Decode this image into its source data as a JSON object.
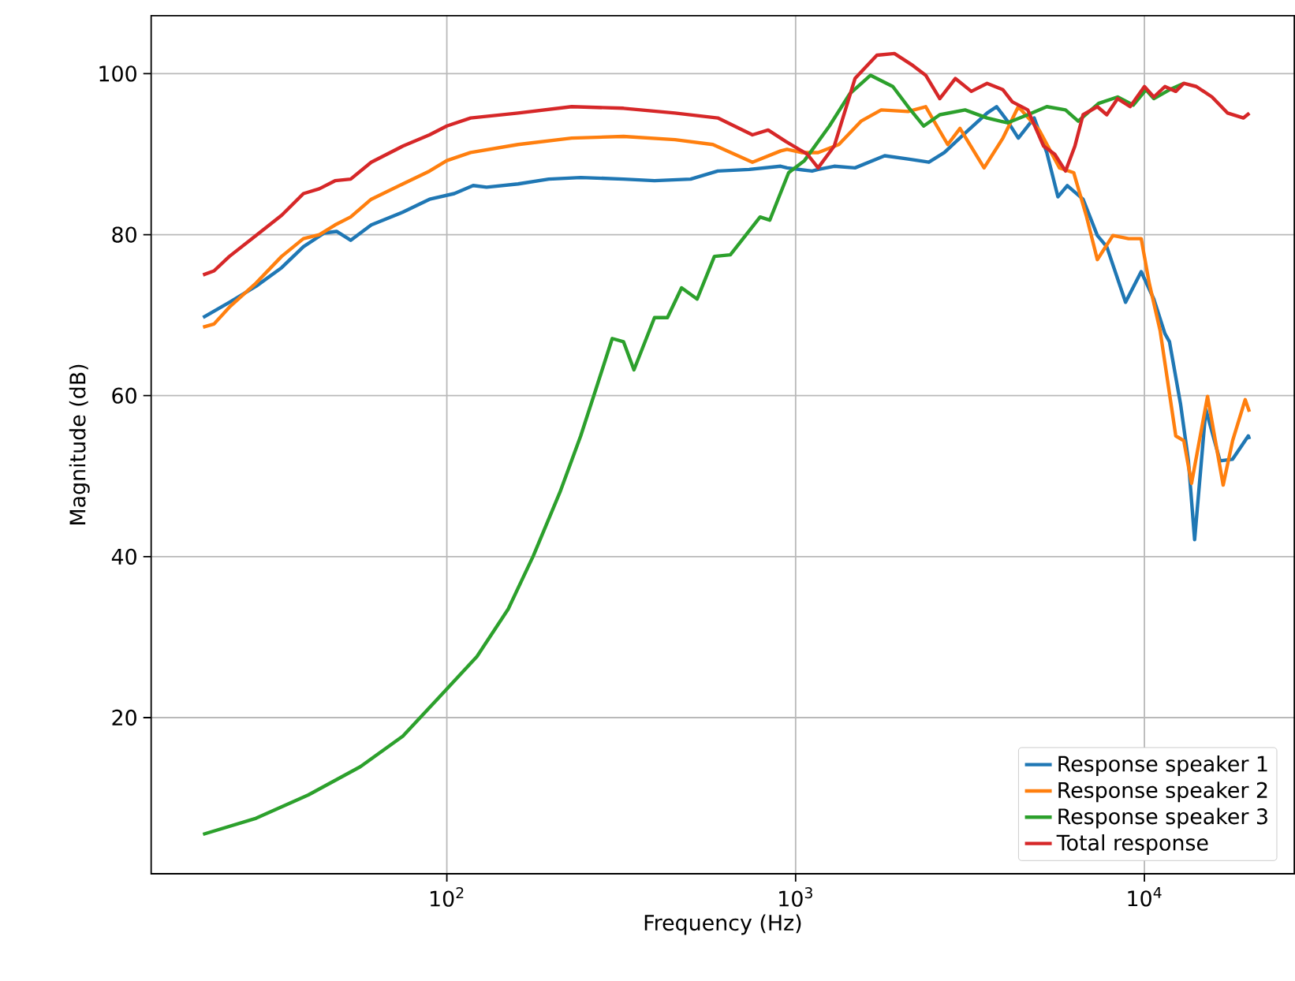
{
  "chart_data": {
    "type": "line",
    "xlabel": "Frequency (Hz)",
    "ylabel": "Magnitude (dB)",
    "log": "x",
    "xlim": [
      14.2,
      26900
    ],
    "ylim": [
      0.6,
      107.2
    ],
    "xticks": [
      {
        "value": 100,
        "label": "10$^{2}$"
      },
      {
        "value": 1000,
        "label": "10$^{3}$"
      },
      {
        "value": 10000,
        "label": "10$^{4}$"
      }
    ],
    "yticks": [
      20,
      40,
      60,
      80,
      100
    ],
    "grid": true,
    "legend": "bottom right",
    "marker": "none",
    "line_style": "solid",
    "series": [
      {
        "name": "Response speaker 1",
        "color": "#1f77b4",
        "x": [
          20,
          21.5,
          23.8,
          28.4,
          33.6,
          38.8,
          44.5,
          48.3,
          53.0,
          60.7,
          74.8,
          89.2,
          105,
          119,
          130,
          160,
          196,
          242,
          321,
          394,
          500,
          598,
          736,
          906,
          945,
          1115,
          1160,
          1290,
          1480,
          1800,
          2100,
          2410,
          2670,
          3060,
          3540,
          3770,
          4050,
          4350,
          4830,
          5250,
          5650,
          6010,
          6670,
          7330,
          7800,
          8830,
          9790,
          10640,
          11450,
          11800,
          12700,
          13370,
          13930,
          15000,
          16470,
          17900,
          19860,
          20000
        ],
        "values": [
          69.7,
          70.5,
          71.6,
          73.6,
          75.9,
          78.5,
          80.2,
          80.4,
          79.3,
          81.2,
          82.8,
          84.4,
          85.1,
          86.1,
          85.9,
          86.3,
          86.9,
          87.1,
          86.9,
          86.7,
          86.9,
          87.9,
          88.1,
          88.5,
          88.3,
          87.9,
          88.1,
          88.5,
          88.3,
          89.8,
          89.4,
          89.0,
          90.2,
          92.6,
          95.1,
          95.9,
          94.1,
          92.0,
          94.5,
          90.2,
          84.7,
          86.1,
          84.4,
          79.9,
          78.5,
          71.6,
          75.4,
          72.0,
          67.7,
          66.7,
          58.9,
          51.9,
          42.1,
          58.3,
          51.9,
          52.1,
          55.0,
          54.6
        ]
      },
      {
        "name": "Response speaker 2",
        "color": "#ff7f0e",
        "x": [
          20,
          21.5,
          23.8,
          28.4,
          33.6,
          38.8,
          43.1,
          47.8,
          53.0,
          60.7,
          74.8,
          89.2,
          100,
          117,
          160,
          228,
          321,
          451,
          579,
          752,
          906,
          945,
          1040,
          1160,
          1330,
          1540,
          1760,
          2100,
          2360,
          2540,
          2730,
          2960,
          3470,
          3930,
          4350,
          4990,
          5710,
          6270,
          6810,
          7330,
          8120,
          9010,
          9790,
          10320,
          11090,
          12300,
          12970,
          13650,
          15170,
          16820,
          17900,
          19450,
          20000
        ],
        "values": [
          68.5,
          68.9,
          71.0,
          74.0,
          77.3,
          79.5,
          80.0,
          81.2,
          82.2,
          84.4,
          86.3,
          87.9,
          89.2,
          90.2,
          91.2,
          92.0,
          92.2,
          91.8,
          91.2,
          89.0,
          90.4,
          90.6,
          90.2,
          90.2,
          91.2,
          94.1,
          95.5,
          95.3,
          95.9,
          93.5,
          91.2,
          93.2,
          88.3,
          92.0,
          95.9,
          93.0,
          88.3,
          87.7,
          82.4,
          76.9,
          79.9,
          79.5,
          79.5,
          74.0,
          68.1,
          55.0,
          54.4,
          49.1,
          59.9,
          48.9,
          54.4,
          59.5,
          58.0
        ]
      },
      {
        "name": "Response speaker 3",
        "color": "#2ca02c",
        "x": [
          20,
          28.4,
          40.1,
          56.5,
          74.8,
          94.9,
          122,
          150,
          177,
          211,
          242,
          268,
          298,
          321,
          344,
          394,
          429,
          471,
          522,
          585,
          650,
          791,
          843,
          955,
          1060,
          1250,
          1430,
          1640,
          1900,
          2100,
          2330,
          2590,
          3060,
          3540,
          4050,
          4630,
          5250,
          5940,
          6460,
          7390,
          8380,
          9290,
          10100,
          10640,
          11800,
          12970
        ],
        "values": [
          5.5,
          7.5,
          10.4,
          13.9,
          17.7,
          22.5,
          27.6,
          33.5,
          40.1,
          48.0,
          55.0,
          60.9,
          67.1,
          66.7,
          63.2,
          69.7,
          69.7,
          73.4,
          72.0,
          77.3,
          77.5,
          82.2,
          81.8,
          87.7,
          89.2,
          93.5,
          97.5,
          99.8,
          98.4,
          95.9,
          93.5,
          94.9,
          95.5,
          94.5,
          93.9,
          94.9,
          95.9,
          95.5,
          94.1,
          96.3,
          97.1,
          96.1,
          98.0,
          96.9,
          98.0,
          98.8
        ]
      },
      {
        "name": "Total response",
        "color": "#d62728",
        "x": [
          20,
          21.5,
          23.8,
          28.4,
          33.6,
          38.8,
          43.1,
          47.8,
          53.0,
          60.7,
          74.8,
          89.2,
          100,
          117,
          160,
          228,
          321,
          451,
          598,
          752,
          834,
          935,
          1080,
          1160,
          1290,
          1480,
          1710,
          1920,
          2170,
          2360,
          2590,
          2870,
          3190,
          3540,
          3930,
          4180,
          4630,
          5140,
          5530,
          5940,
          6320,
          6670,
          7330,
          7800,
          8380,
          9100,
          10000,
          10640,
          11450,
          12300,
          12970,
          14090,
          15630,
          17330,
          19230,
          20000
        ],
        "values": [
          75.0,
          75.5,
          77.3,
          79.9,
          82.4,
          85.1,
          85.7,
          86.7,
          86.9,
          89.0,
          91.0,
          92.4,
          93.5,
          94.5,
          95.1,
          95.9,
          95.7,
          95.1,
          94.5,
          92.4,
          93.0,
          91.6,
          90.0,
          88.3,
          91.0,
          99.4,
          102.3,
          102.5,
          101.0,
          99.8,
          96.9,
          99.4,
          97.8,
          98.8,
          98.0,
          96.5,
          95.5,
          91.0,
          90.0,
          87.9,
          91.0,
          94.9,
          95.9,
          94.9,
          96.9,
          95.9,
          98.4,
          97.1,
          98.4,
          97.8,
          98.8,
          98.4,
          97.1,
          95.1,
          94.5,
          95.1
        ]
      }
    ]
  }
}
